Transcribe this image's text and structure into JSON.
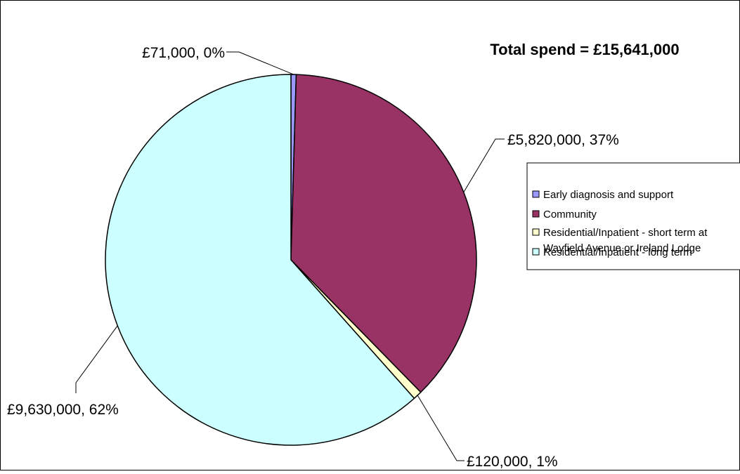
{
  "chart_data": {
    "type": "pie",
    "title": "Total spend = £15,641,000",
    "slices": [
      {
        "name": "Early diagnosis and support",
        "value": 71000,
        "label": "£71,000, 0%",
        "color": "#9999ff"
      },
      {
        "name": "Community",
        "value": 5820000,
        "label": "£5,820,000, 37%",
        "color": "#993366"
      },
      {
        "name": "Residential/Inpatient - short term at Wayfield Avenue or Ireland Lodge",
        "value": 120000,
        "label": "£120,000, 1%",
        "color": "#ffffcc"
      },
      {
        "name": "Residential/Inpatient - long term",
        "value": 9630000,
        "label": "£9,630,000, 62%",
        "color": "#ccffff"
      }
    ],
    "legend": {
      "placement": "right",
      "entries": [
        {
          "lines": [
            "Early diagnosis and support"
          ]
        },
        {
          "lines": [
            "Community"
          ]
        },
        {
          "lines": [
            "Residential/Inpatient - short term at",
            "Wayfield Avenue or Ireland Lodge"
          ]
        },
        {
          "lines": [
            "Residential/Inpatient - long term"
          ]
        }
      ]
    }
  }
}
